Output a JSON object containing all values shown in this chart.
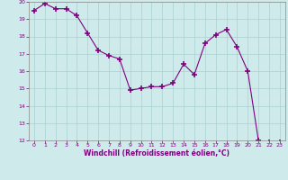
{
  "x": [
    0,
    1,
    2,
    3,
    4,
    5,
    6,
    7,
    8,
    9,
    10,
    11,
    12,
    13,
    14,
    15,
    16,
    17,
    18,
    19,
    20,
    21,
    22,
    23
  ],
  "y": [
    19.5,
    19.9,
    19.6,
    19.6,
    19.2,
    18.2,
    17.2,
    16.9,
    16.7,
    14.9,
    15.0,
    15.1,
    15.1,
    15.3,
    16.4,
    15.8,
    17.6,
    18.1,
    18.4,
    17.4,
    16.0,
    12.0,
    11.9,
    11.9
  ],
  "ylim": [
    12,
    20
  ],
  "xlim": [
    -0.5,
    23.5
  ],
  "yticks": [
    12,
    13,
    14,
    15,
    16,
    17,
    18,
    19,
    20
  ],
  "xticks": [
    0,
    1,
    2,
    3,
    4,
    5,
    6,
    7,
    8,
    9,
    10,
    11,
    12,
    13,
    14,
    15,
    16,
    17,
    18,
    19,
    20,
    21,
    22,
    23
  ],
  "xlabel": "Windchill (Refroidissement éolien,°C)",
  "line_color": "#800080",
  "marker": "+",
  "marker_color": "#800080",
  "bg_color": "#ceeaea",
  "grid_color": "#aacfcf",
  "tick_color": "#800080",
  "label_color": "#800080",
  "spine_color": "#888888"
}
